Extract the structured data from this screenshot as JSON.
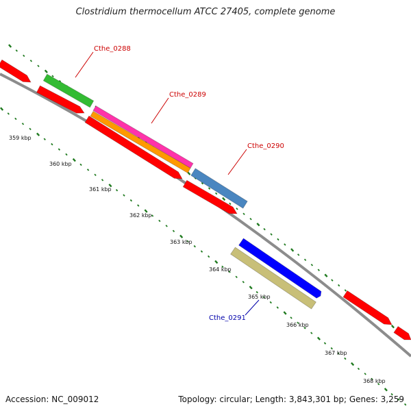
{
  "title": "Clostridium thermocellum ATCC 27405, complete genome",
  "footer": {
    "accession": "Accession: NC_009012",
    "summary": "Topology: circular; Length: 3,843,301 bp; Genes: 3,259"
  },
  "kbp_labels": [
    "359 kbp",
    "360 kbp",
    "361 kbp",
    "362 kbp",
    "363 kbp",
    "364 kbp",
    "365 kbp",
    "366 kbp",
    "367 kbp",
    "368 kbp"
  ],
  "genes": [
    {
      "label": "Cthe_0288",
      "color": "#cc0000"
    },
    {
      "label": "Cthe_0289",
      "color": "#cc0000"
    },
    {
      "label": "Cthe_0290",
      "color": "#cc0000"
    },
    {
      "label": "Cthe_0291",
      "color": "#0000aa"
    }
  ],
  "colors": {
    "backbone": "#8c8c8c",
    "tick": "#1f7a1f",
    "red_feature": "#ff0000",
    "green_feature": "#33bb33",
    "magenta_feature": "#ff33aa",
    "orange_feature": "#ff9900",
    "steelblue_feature": "#4a86c0",
    "blue_feature": "#0000ff",
    "khaki_feature": "#c8bf78"
  }
}
